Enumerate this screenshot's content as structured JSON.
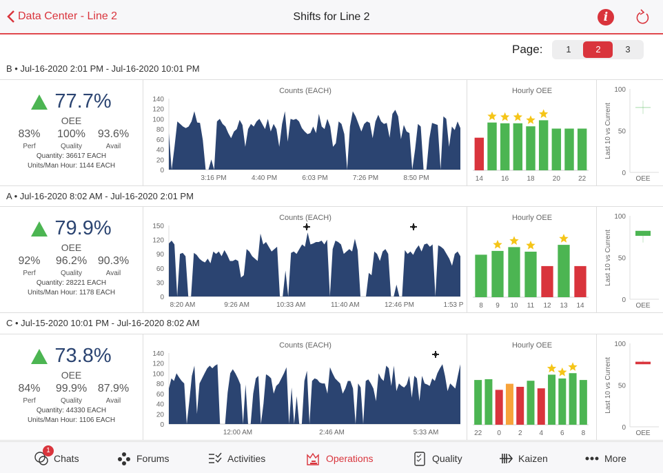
{
  "header": {
    "back_label": "Data Center - Line 2",
    "title": "Shifts for Line 2",
    "info_icon": "info-icon",
    "refresh_icon": "refresh-icon"
  },
  "pager": {
    "label": "Page:",
    "pages": [
      "1",
      "2",
      "3"
    ],
    "current": "2"
  },
  "colors": {
    "accent": "#d9343c",
    "area": "#2b4471",
    "good": "#4cb552",
    "bad": "#d9343c",
    "warn": "#f7a33a",
    "star": "#f5c518"
  },
  "shifts": [
    {
      "label": "B • Jul-16-2020 2:01 PM - Jul-16-2020 10:01 PM",
      "oee": "77.7%",
      "oee_label": "OEE",
      "perf": "83%",
      "perf_label": "Perf",
      "quality": "100%",
      "quality_label": "Quality",
      "avail": "93.6%",
      "avail_label": "Avail",
      "quantity": "Quantity: 36617 EACH",
      "units": "Units/Man Hour: 1144 EACH"
    },
    {
      "label": "A • Jul-16-2020 8:02 AM - Jul-16-2020 2:01 PM",
      "oee": "79.9%",
      "oee_label": "OEE",
      "perf": "92%",
      "perf_label": "Perf",
      "quality": "96.2%",
      "quality_label": "Quality",
      "avail": "90.3%",
      "avail_label": "Avail",
      "quantity": "Quantity: 28221 EACH",
      "units": "Units/Man Hour: 1178 EACH"
    },
    {
      "label": "C • Jul-15-2020 10:01 PM - Jul-16-2020 8:02 AM",
      "oee": "73.8%",
      "oee_label": "OEE",
      "perf": "84%",
      "perf_label": "Perf",
      "quality": "99.9%",
      "quality_label": "Quality",
      "avail": "87.9%",
      "avail_label": "Avail",
      "quantity": "Quantity: 44330 EACH",
      "units": "Units/Man Hour: 1106 EACH"
    }
  ],
  "chart_data": [
    {
      "type": "area",
      "title": "Counts (EACH)",
      "ylim": [
        0,
        140
      ],
      "yticks": [
        0,
        20,
        40,
        60,
        80,
        100,
        120,
        140
      ],
      "xtick_labels": [
        "3:16 PM",
        "4:40 PM",
        "6:03 PM",
        "7:26 PM",
        "8:50 PM"
      ],
      "markers": 0,
      "values": [
        72,
        0,
        45,
        95,
        90,
        85,
        82,
        85,
        95,
        115,
        93,
        92,
        58,
        0,
        0,
        20,
        0,
        95,
        100,
        90,
        85,
        72,
        62,
        75,
        80,
        98,
        88,
        45,
        80,
        90,
        85,
        95,
        100,
        90,
        80,
        100,
        75,
        90,
        80,
        45,
        90,
        115,
        55,
        100,
        98,
        100,
        95,
        82,
        75,
        70,
        72,
        85,
        72,
        110,
        85,
        80,
        100,
        85,
        45,
        52,
        95,
        90,
        70,
        0,
        85,
        115,
        105,
        90,
        75,
        90,
        95,
        92,
        62,
        95,
        108,
        95,
        90,
        92,
        63,
        110,
        118,
        105,
        60,
        88,
        75,
        72,
        0,
        40,
        90,
        85,
        0,
        0,
        60,
        92,
        90,
        88,
        0,
        105,
        100,
        45,
        85,
        78,
        95,
        82
      ]
    },
    {
      "type": "bar",
      "title": "Hourly OEE",
      "categories": [
        "14",
        "15",
        "16",
        "17",
        "18",
        "19",
        "20",
        "21",
        "22"
      ],
      "xtick_labels": [
        "14",
        "",
        "16",
        "",
        "18",
        "",
        "20",
        "",
        "22"
      ],
      "values": [
        43,
        63,
        62,
        62,
        58,
        66,
        55,
        55,
        55
      ],
      "status": [
        "bad",
        "good",
        "good",
        "good",
        "good",
        "good",
        "good",
        "good",
        "good"
      ],
      "stars": [
        false,
        true,
        true,
        true,
        true,
        true,
        false,
        false,
        false
      ]
    },
    {
      "type": "box",
      "ylabel": "Last 10 vs Current",
      "ylim": [
        0,
        100
      ],
      "yticks": [
        0,
        50,
        100
      ],
      "category": "OEE",
      "low": 70,
      "q1": 77.5,
      "q3": 78.2,
      "high": 86,
      "status": "good"
    },
    {
      "type": "area",
      "title": "Counts (EACH)",
      "ylim": [
        0,
        150
      ],
      "yticks": [
        0,
        30,
        60,
        90,
        120,
        150
      ],
      "xtick_labels": [
        "8:20 AM",
        "9:26 AM",
        "10:33 AM",
        "11:40 AM",
        "12:46 PM",
        "1:53 P"
      ],
      "markers": 2,
      "values": [
        112,
        118,
        110,
        0,
        90,
        92,
        85,
        0,
        0,
        92,
        88,
        80,
        75,
        72,
        80,
        70,
        95,
        90,
        95,
        85,
        98,
        88,
        75,
        75,
        78,
        75,
        40,
        45,
        100,
        95,
        85,
        80,
        75,
        133,
        110,
        115,
        105,
        95,
        100,
        105,
        0,
        0,
        55,
        0,
        92,
        95,
        90,
        100,
        110,
        105,
        135,
        110,
        112,
        115,
        115,
        118,
        110,
        120,
        0,
        100,
        118,
        115,
        110,
        90,
        95,
        100,
        95,
        122,
        98,
        0,
        0,
        0,
        50,
        45,
        95,
        90,
        75,
        95,
        100,
        90,
        0,
        0,
        25,
        0,
        0,
        98,
        90,
        95,
        88,
        100,
        108,
        95,
        110,
        112,
        105,
        110,
        0,
        108,
        105,
        100,
        90,
        80,
        65,
        90,
        95,
        85
      ]
    },
    {
      "type": "bar",
      "title": "Hourly OEE",
      "categories": [
        "8",
        "9",
        "10",
        "11",
        "12",
        "13",
        "14"
      ],
      "xtick_labels": [
        "8",
        "9",
        "10",
        "11",
        "12",
        "13",
        "14"
      ],
      "values": [
        56,
        61,
        66,
        60,
        41,
        69,
        41
      ],
      "status": [
        "good",
        "good",
        "good",
        "good",
        "bad",
        "good",
        "bad"
      ],
      "stars": [
        false,
        true,
        true,
        true,
        false,
        true,
        false
      ]
    },
    {
      "type": "box",
      "ylabel": "Last 10 vs Current",
      "ylim": [
        0,
        100
      ],
      "yticks": [
        0,
        50,
        100
      ],
      "category": "OEE",
      "low": 68,
      "q1": 76,
      "q3": 82,
      "high": 82,
      "status": "good"
    },
    {
      "type": "area",
      "title": "Counts (EACH)",
      "ylim": [
        0,
        140
      ],
      "yticks": [
        0,
        20,
        40,
        60,
        80,
        100,
        120,
        140
      ],
      "xtick_labels": [
        "12:00 AM",
        "2:46 AM",
        "5:33 AM"
      ],
      "markers": 1,
      "values": [
        70,
        90,
        85,
        100,
        92,
        85,
        80,
        0,
        45,
        95,
        115,
        20,
        80,
        90,
        100,
        110,
        115,
        110,
        115,
        118,
        0,
        0,
        0,
        62,
        100,
        108,
        100,
        90,
        78,
        0,
        78,
        0,
        0,
        60,
        90,
        95,
        0,
        40,
        98,
        95,
        90,
        60,
        75,
        80,
        90,
        100,
        112,
        0,
        72,
        0,
        55,
        0,
        0,
        85,
        105,
        0,
        85,
        90,
        88,
        82,
        80,
        80,
        60,
        112,
        100,
        90,
        85,
        80,
        60,
        70,
        85,
        85,
        70,
        0,
        80,
        72,
        0,
        85,
        88,
        80,
        70,
        45,
        100,
        90,
        85,
        115,
        110,
        75,
        115,
        65,
        80,
        75,
        72,
        78,
        95,
        52,
        95,
        90,
        45,
        95,
        80,
        78,
        75,
        90,
        85,
        100,
        110,
        118,
        95,
        65,
        80,
        75,
        70,
        95,
        118
      ]
    },
    {
      "type": "bar",
      "title": "Hourly OEE",
      "categories": [
        "22",
        "23",
        "0",
        "1",
        "2",
        "3",
        "4",
        "5",
        "6",
        "7",
        "8"
      ],
      "xtick_labels": [
        "22",
        "",
        "0",
        "",
        "2",
        "",
        "4",
        "",
        "6",
        "",
        "8"
      ],
      "values": [
        59,
        60,
        46,
        54,
        50,
        58,
        48,
        66,
        61,
        68,
        59
      ],
      "status": [
        "good",
        "good",
        "bad",
        "warn",
        "bad",
        "good",
        "bad",
        "good",
        "good",
        "good",
        "good"
      ],
      "stars": [
        false,
        false,
        false,
        false,
        false,
        false,
        false,
        true,
        true,
        true,
        false
      ]
    },
    {
      "type": "box",
      "ylabel": "Last 10 vs Current",
      "ylim": [
        0,
        100
      ],
      "yticks": [
        0,
        50,
        100
      ],
      "category": "OEE",
      "low": 75,
      "q1": 75,
      "q3": 78,
      "high": 80,
      "status": "bad"
    }
  ],
  "tabs": [
    {
      "label": "Chats",
      "icon": "chats-icon",
      "badge": "1"
    },
    {
      "label": "Forums",
      "icon": "forums-icon"
    },
    {
      "label": "Activities",
      "icon": "activities-icon"
    },
    {
      "label": "Operations",
      "icon": "operations-icon",
      "active": true
    },
    {
      "label": "Quality",
      "icon": "quality-icon"
    },
    {
      "label": "Kaizen",
      "icon": "kaizen-icon"
    },
    {
      "label": "More",
      "icon": "more-icon"
    }
  ]
}
